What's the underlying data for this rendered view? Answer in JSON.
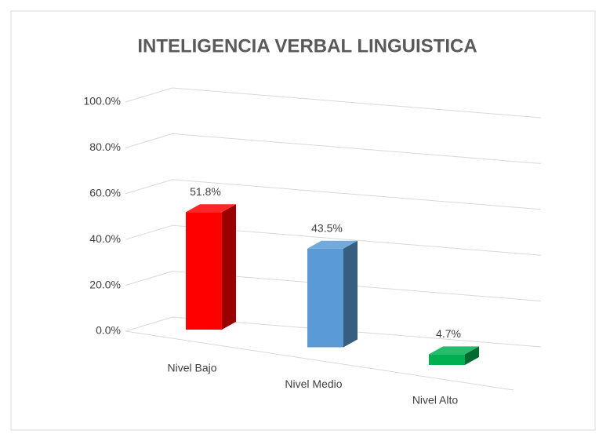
{
  "chart_data": {
    "type": "bar3d",
    "title": "INTELIGENCIA VERBAL LINGUISTICA",
    "categories": [
      "Nivel Bajo",
      "Nivel Medio",
      "Nivel Alto"
    ],
    "values": [
      51.8,
      43.5,
      4.7
    ],
    "value_labels": [
      "51.8%",
      "43.5%",
      "4.7%"
    ],
    "colors": [
      "#ff0000",
      "#5b9bd5",
      "#00b050"
    ],
    "ylim": [
      0,
      100
    ],
    "yticks": [
      {
        "value": 0,
        "label": "0.0%"
      },
      {
        "value": 20,
        "label": "20.0%"
      },
      {
        "value": 40,
        "label": "40.0%"
      },
      {
        "value": 60,
        "label": "60.0%"
      },
      {
        "value": 80,
        "label": "80.0%"
      },
      {
        "value": 100,
        "label": "100.0%"
      }
    ],
    "grid": true
  }
}
